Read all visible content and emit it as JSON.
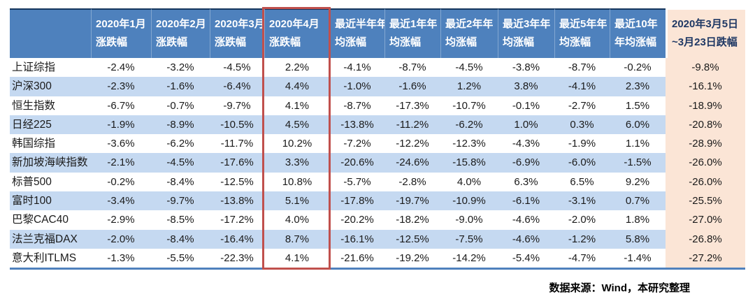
{
  "colors": {
    "header_bg": "#4E81BD",
    "header_text": "#FFFFFF",
    "header_top_border": "#17375E",
    "stripe_bg": "#C5D9F1",
    "special_col_bg": "#FBE5D6",
    "special_header_text": "#1F3864",
    "body_text": "#1A1A1A",
    "highlight_border": "#C0504D",
    "bottom_border": "#4F81BD"
  },
  "chart_data": {
    "type": "table",
    "highlighted_column": "2020年4月涨跌幅",
    "columns": [
      {
        "line1": "",
        "line2": ""
      },
      {
        "line1": "2020年1月",
        "line2": "涨跌幅"
      },
      {
        "line1": "2020年2月",
        "line2": "涨跌幅"
      },
      {
        "line1": "2020年3月",
        "line2": "涨跌幅"
      },
      {
        "line1": "2020年4月",
        "line2": "涨跌幅",
        "highlighted": true
      },
      {
        "line1": "最近半年年",
        "line2": "均涨幅"
      },
      {
        "line1": "最近1年年",
        "line2": "均涨幅"
      },
      {
        "line1": "最近2年年",
        "line2": "均涨幅"
      },
      {
        "line1": "最近3年年",
        "line2": "均涨幅"
      },
      {
        "line1": "最近5年年",
        "line2": "均涨幅"
      },
      {
        "line1": "最近10年",
        "line2": "年均涨幅"
      },
      {
        "line1": "2020年3月5日",
        "line2": "~3月23日跌幅",
        "special": true
      }
    ],
    "rows": [
      {
        "label": "上证综指",
        "values": [
          "-2.4%",
          "-3.2%",
          "-4.5%",
          "2.2%",
          "-4.1%",
          "-8.7%",
          "-4.5%",
          "-3.8%",
          "-8.7%",
          "-0.2%",
          "-9.8%"
        ]
      },
      {
        "label": "沪深300",
        "values": [
          "-2.3%",
          "-1.6%",
          "-6.4%",
          "4.4%",
          "-1.0%",
          "-1.6%",
          "1.2%",
          "3.8%",
          "-4.1%",
          "2.3%",
          "-16.1%"
        ]
      },
      {
        "label": "恒生指数",
        "values": [
          "-6.7%",
          "-0.7%",
          "-9.7%",
          "4.1%",
          "-8.7%",
          "-17.3%",
          "-10.7%",
          "-0.1%",
          "-2.7%",
          "1.5%",
          "-18.9%"
        ]
      },
      {
        "label": "日经225",
        "values": [
          "-1.9%",
          "-8.9%",
          "-10.5%",
          "4.5%",
          "-13.8%",
          "-11.2%",
          "-6.2%",
          "1.0%",
          "0.3%",
          "6.0%",
          "-20.8%"
        ]
      },
      {
        "label": "韩国综指",
        "values": [
          "-3.6%",
          "-6.2%",
          "-11.7%",
          "10.2%",
          "-7.2%",
          "-12.2%",
          "-12.3%",
          "-4.3%",
          "-1.9%",
          "1.1%",
          "-28.9%"
        ]
      },
      {
        "label": "新加坡海峡指数",
        "values": [
          "-2.1%",
          "-4.5%",
          "-17.6%",
          "3.3%",
          "-20.6%",
          "-24.6%",
          "-15.8%",
          "-6.9%",
          "-6.0%",
          "-1.5%",
          "-26.0%"
        ]
      },
      {
        "label": "标普500",
        "values": [
          "-0.2%",
          "-8.4%",
          "-12.5%",
          "10.8%",
          "-5.7%",
          "-2.8%",
          "4.0%",
          "6.3%",
          "6.5%",
          "9.2%",
          "-26.0%"
        ]
      },
      {
        "label": "富时100",
        "values": [
          "-3.4%",
          "-9.7%",
          "-13.8%",
          "5.1%",
          "-17.8%",
          "-19.7%",
          "-10.9%",
          "-6.1%",
          "-3.1%",
          "0.7%",
          "-25.5%"
        ]
      },
      {
        "label": "巴黎CAC40",
        "values": [
          "-2.9%",
          "-8.5%",
          "-17.2%",
          "4.0%",
          "-20.2%",
          "-18.2%",
          "-9.0%",
          "-4.6%",
          "-2.0%",
          "1.8%",
          "-27.0%"
        ]
      },
      {
        "label": "法兰克福DAX",
        "values": [
          "-2.0%",
          "-8.4%",
          "-16.4%",
          "8.7%",
          "-16.1%",
          "-12.5%",
          "-7.5%",
          "-4.6%",
          "-1.2%",
          "5.8%",
          "-26.8%"
        ]
      },
      {
        "label": "意大利ITLMS",
        "values": [
          "-1.3%",
          "-5.5%",
          "-22.3%",
          "4.1%",
          "-21.6%",
          "-19.2%",
          "-14.2%",
          "-5.4%",
          "-4.7%",
          "-1.4%",
          "-27.2%"
        ]
      }
    ],
    "source": "数据来源：Wind，本研究整理"
  }
}
